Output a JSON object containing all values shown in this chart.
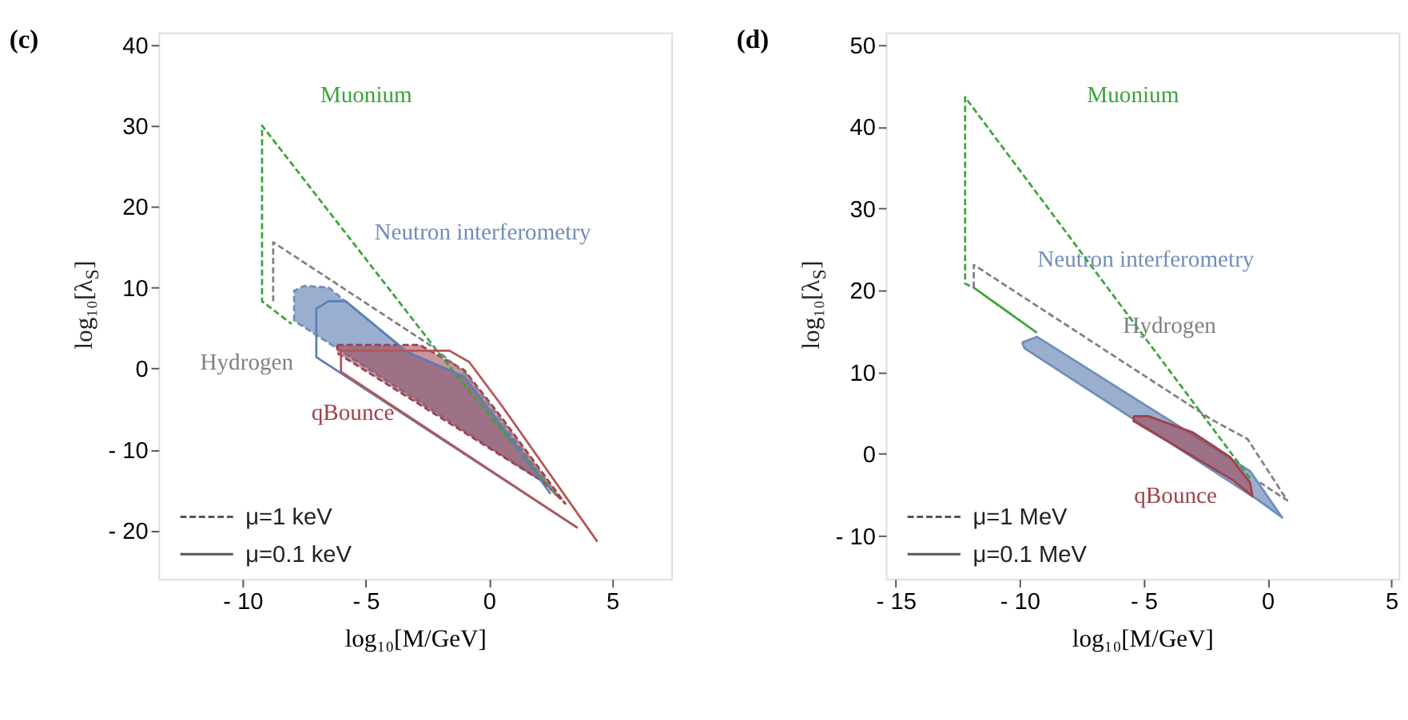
{
  "chart_data": [
    {
      "type": "line",
      "title": "(c)",
      "xlabel": "log₁₀[M/GeV]",
      "ylabel": "log₁₀[λ$_{S}$]",
      "xlim": [
        -13.4,
        7.4
      ],
      "ylim": [
        -26,
        41.5
      ],
      "xticks": [
        -10,
        -5,
        0,
        5
      ],
      "yticks": [
        -20,
        -10,
        0,
        10,
        20,
        30,
        40
      ],
      "grid": false,
      "annotations": [
        "μ=1 keV",
        "μ=0.1 keV"
      ],
      "series": [
        {
          "name": "Muonium",
          "color": "#3aa43a",
          "line_style": "dashed",
          "x": [
            2.7,
            -0.6,
            -1.9,
            -9.2,
            -9.2,
            -8
          ],
          "values": [
            -15.5,
            -3.5,
            1.4,
            30,
            8.3,
            5.5
          ]
        },
        {
          "name": "Hydrogen",
          "color": "#808080",
          "line_style": "dashed",
          "x": [
            -8.75,
            -8.75,
            -2.3,
            -0.9,
            0.4,
            2.8
          ],
          "values": [
            8.3,
            15.6,
            2.7,
            -0.8,
            -6,
            -16
          ]
        },
        {
          "name": "Neutron interferometry",
          "type": "area",
          "color": "#6f8dbb",
          "line_style": "dashed",
          "x": [
            -7.9,
            -7.9,
            -7.5,
            -6.5,
            -3.3,
            -1,
            0.5,
            2.7,
            2.2,
            -7.9
          ],
          "values": [
            5.9,
            9.6,
            10.2,
            10,
            2,
            -1,
            -7,
            -15.4,
            -14,
            5.9
          ]
        },
        {
          "color": "#5b7fb5",
          "line_style": "solid",
          "x": [
            3.6,
            -7,
            -7,
            -6.5,
            -5.8,
            -3.3,
            -1,
            0.5,
            2.5
          ],
          "values": [
            -19.7,
            1.4,
            7.4,
            8.3,
            8.3,
            2,
            -1,
            -7,
            -15.5
          ]
        },
        {
          "name": "qBounce",
          "type": "area",
          "color": "#a0404a",
          "line_style": "dashed",
          "x": [
            -6.15,
            -2.8,
            -1,
            0.5,
            3.1,
            2.2,
            -6.15,
            -6.15
          ],
          "values": [
            2.9,
            2.9,
            -0.2,
            -6,
            -16.7,
            -14,
            1.9,
            2.9
          ]
        },
        {
          "color": "#b85555",
          "line_style": "solid",
          "x": [
            3.6,
            -6,
            -6,
            -1.6,
            -0.8,
            0.5,
            4.4
          ],
          "values": [
            -19.7,
            -0.4,
            2.2,
            2.2,
            0.8,
            -4.5,
            -21.4
          ]
        }
      ]
    },
    {
      "type": "line",
      "title": "(d)",
      "xlabel": "log₁₀[M/GeV]",
      "ylabel": "log₁₀[λ$_{S}$]",
      "xlim": [
        -15.4,
        5.3
      ],
      "ylim": [
        -15.3,
        51.5
      ],
      "xticks": [
        -15,
        -10,
        -5,
        0,
        5
      ],
      "yticks": [
        -10,
        0,
        10,
        20,
        30,
        40,
        50
      ],
      "grid": false,
      "annotations": [
        "μ=1 MeV",
        "μ=0.1 MeV"
      ],
      "series": [
        {
          "name": "Muonium",
          "color": "#3aa43a",
          "line_style": "dashed",
          "x": [
            -0.7,
            -12.2,
            -12.2,
            -11.85
          ],
          "values": [
            -3,
            43.6,
            20.8,
            20.3
          ]
        },
        {
          "color": "#3aa43a",
          "line_style": "solid",
          "x": [
            -11.85,
            -9.3
          ],
          "values": [
            20.3,
            14.8
          ]
        },
        {
          "name": "Hydrogen",
          "color": "#808080",
          "line_style": "dashed",
          "x": [
            -11.85,
            -11.85,
            -2.2,
            -0.8,
            0.8,
            -0.3
          ],
          "values": [
            20.3,
            23.1,
            4.1,
            1.8,
            -5.7,
            -3.5
          ]
        },
        {
          "name": "Neutron interferometry",
          "type": "area",
          "color": "#6f8dbb",
          "line_style": "solid",
          "x": [
            -9.9,
            -9.3,
            -0.7,
            0.6,
            -0.4,
            -9.8,
            -9.9
          ],
          "values": [
            13.6,
            14.3,
            -2.1,
            -7.8,
            -5.6,
            12.9,
            13.6
          ]
        },
        {
          "name": "qBounce",
          "type": "area",
          "color": "#a0404a",
          "line_style": "solid",
          "x": [
            -5.4,
            -4.8,
            -3,
            -1.5,
            -0.7,
            -0.6,
            -1.4,
            -5.4,
            -5.4
          ],
          "values": [
            4.6,
            4.6,
            2.6,
            -0.4,
            -3.5,
            -5.2,
            -3.2,
            4.0,
            4.6
          ]
        }
      ]
    }
  ]
}
